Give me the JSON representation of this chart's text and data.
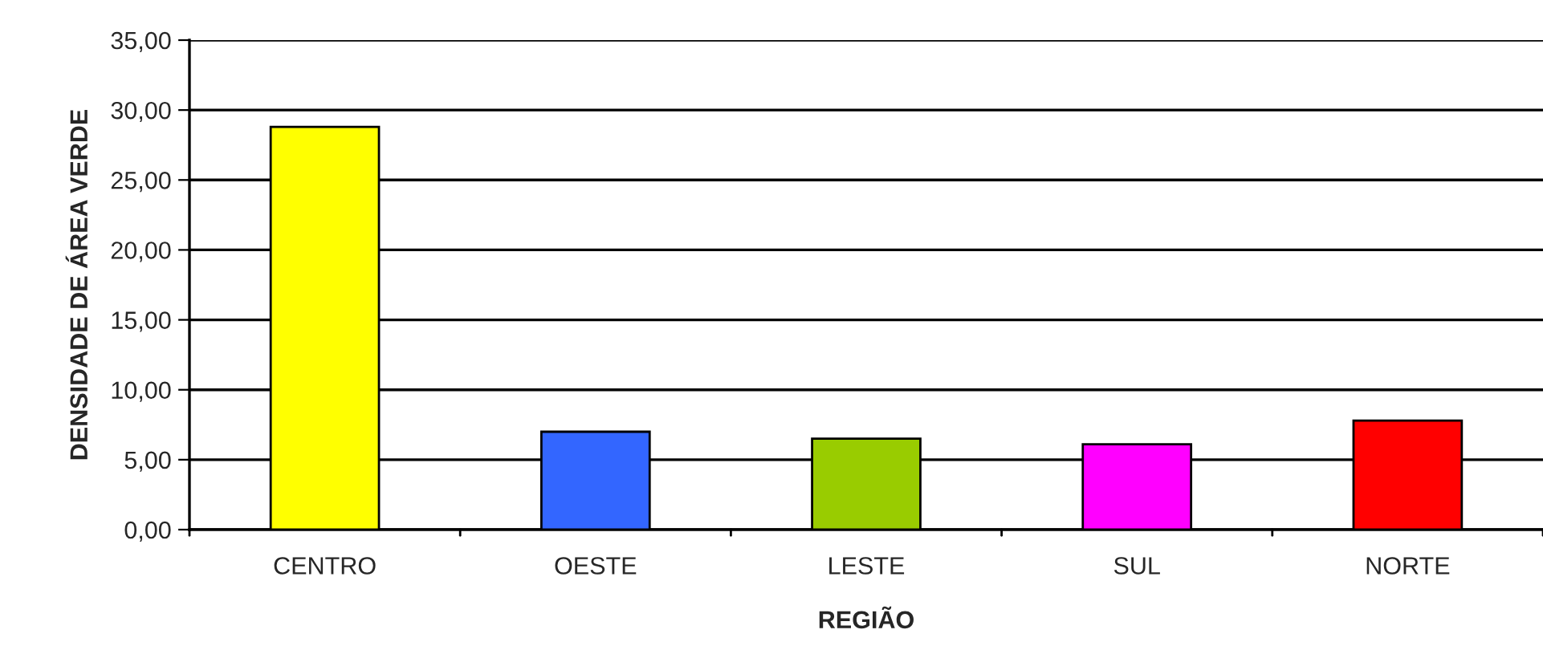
{
  "chart_data": {
    "type": "bar",
    "xlabel": "REGIÃO",
    "ylabel": "DENSIDADE DE ÁREA VERDE",
    "categories": [
      "CENTRO",
      "OESTE",
      "LESTE",
      "SUL",
      "NORTE"
    ],
    "values": [
      28.8,
      7.0,
      6.5,
      6.1,
      7.8
    ],
    "colors": [
      "#ffff00",
      "#3366ff",
      "#99cc00",
      "#ff00ff",
      "#ff0000"
    ],
    "ylim": [
      0,
      35
    ],
    "yticks": [
      {
        "value": 0,
        "label": "0,00"
      },
      {
        "value": 5,
        "label": "5,00"
      },
      {
        "value": 10,
        "label": "10,00"
      },
      {
        "value": 15,
        "label": "15,00"
      },
      {
        "value": 20,
        "label": "20,00"
      },
      {
        "value": 25,
        "label": "25,00"
      },
      {
        "value": 30,
        "label": "30,00"
      },
      {
        "value": 35,
        "label": "35,00"
      }
    ],
    "grid": "y"
  }
}
